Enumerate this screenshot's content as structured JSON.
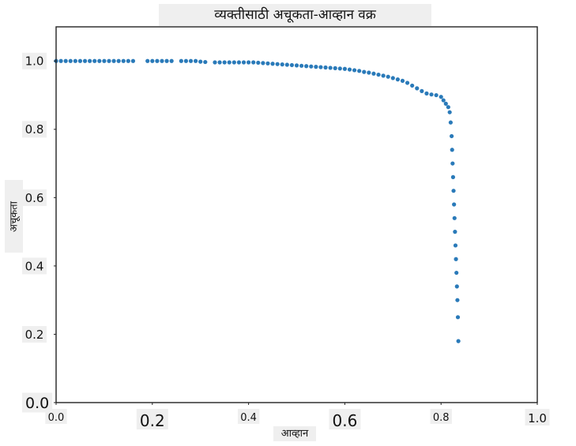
{
  "chart_data": {
    "type": "scatter",
    "title": "व्यक्तीसाठी अचूकता-आव्हान वक्र",
    "xlabel": "आव्हान",
    "ylabel": "अचूकता",
    "xlim": [
      0.0,
      1.0
    ],
    "ylim": [
      0.0,
      1.1
    ],
    "x_ticks": [
      "0.0",
      "0.2",
      "0.4",
      "0.6",
      "0.8",
      "1.0"
    ],
    "y_ticks": [
      "0.0",
      "0.2",
      "0.4",
      "0.6",
      "0.8",
      "1.0"
    ],
    "grid": false,
    "color": "#2a7ab9",
    "series": [
      {
        "x": [
          0.0,
          0.01,
          0.02,
          0.03,
          0.04,
          0.05,
          0.06,
          0.07,
          0.08,
          0.09,
          0.1,
          0.11,
          0.12,
          0.13,
          0.14,
          0.15,
          0.16,
          0.19,
          0.2,
          0.21,
          0.22,
          0.23,
          0.24,
          0.26,
          0.27,
          0.28,
          0.29,
          0.3,
          0.31,
          0.33,
          0.34,
          0.35,
          0.36,
          0.37,
          0.38,
          0.39,
          0.4,
          0.41,
          0.42,
          0.43,
          0.44,
          0.45,
          0.46,
          0.47,
          0.48,
          0.49,
          0.5,
          0.51,
          0.52,
          0.53,
          0.54,
          0.55,
          0.56,
          0.57,
          0.58,
          0.59,
          0.6,
          0.61,
          0.62,
          0.63,
          0.64,
          0.65,
          0.66,
          0.67,
          0.68,
          0.69,
          0.7,
          0.71,
          0.72,
          0.73,
          0.74,
          0.75,
          0.76,
          0.77,
          0.78,
          0.79,
          0.8,
          0.805,
          0.81,
          0.815,
          0.818,
          0.82,
          0.822,
          0.823,
          0.824,
          0.825,
          0.826,
          0.827,
          0.828,
          0.829,
          0.83,
          0.831,
          0.832,
          0.833,
          0.834,
          0.835,
          0.836
        ],
        "y": [
          1.0,
          1.0,
          1.0,
          1.0,
          1.0,
          1.0,
          1.0,
          1.0,
          1.0,
          1.0,
          1.0,
          1.0,
          1.0,
          1.0,
          1.0,
          1.0,
          1.0,
          1.0,
          1.0,
          1.0,
          1.0,
          1.0,
          1.0,
          1.0,
          1.0,
          1.0,
          1.0,
          0.998,
          0.997,
          0.996,
          0.996,
          0.996,
          0.996,
          0.996,
          0.996,
          0.996,
          0.996,
          0.996,
          0.995,
          0.994,
          0.993,
          0.992,
          0.991,
          0.99,
          0.989,
          0.988,
          0.987,
          0.986,
          0.985,
          0.984,
          0.983,
          0.982,
          0.981,
          0.98,
          0.979,
          0.978,
          0.977,
          0.975,
          0.973,
          0.971,
          0.968,
          0.966,
          0.963,
          0.96,
          0.957,
          0.954,
          0.95,
          0.946,
          0.942,
          0.936,
          0.928,
          0.92,
          0.912,
          0.905,
          0.902,
          0.9,
          0.895,
          0.885,
          0.875,
          0.865,
          0.85,
          0.82,
          0.78,
          0.74,
          0.7,
          0.66,
          0.62,
          0.58,
          0.54,
          0.5,
          0.46,
          0.42,
          0.38,
          0.34,
          0.3,
          0.25,
          0.18
        ]
      }
    ]
  }
}
